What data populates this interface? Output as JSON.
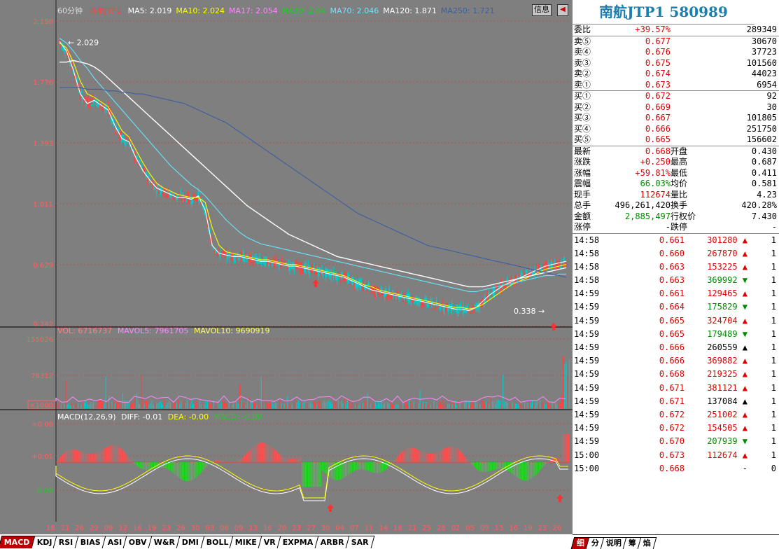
{
  "chart": {
    "period": "60分钟",
    "name": "南航JTP1",
    "ma": [
      {
        "label": "MA5: 2.019",
        "color": "#ffffff"
      },
      {
        "label": "MA10: 2.024",
        "color": "#ffff00"
      },
      {
        "label": "MA17: 2.054",
        "color": "#ff88ff"
      },
      {
        "label": "MA30: 2.04",
        "color": "#22cc22"
      },
      {
        "label": "MA70: 2.046",
        "color": "#66e6ff"
      },
      {
        "label": "MA120: 1.871",
        "color": "#ffffff"
      },
      {
        "label": "MA250: 1.721",
        "color": "#3a5fa0"
      }
    ],
    "price_ticks": [
      "2.158",
      "1.776",
      "1.393",
      "1.011",
      "0.629",
      "0.242"
    ],
    "high_label": "2.029",
    "low_label": "0.338",
    "vol_legend": {
      "vol": "VOL: 6716737",
      "mavol5": "MAVOL5: 7961705",
      "mavol10": "MAVOL10: 9690919"
    },
    "vol_ticks": [
      "155026",
      "78312",
      "×1000"
    ],
    "macd_legend": {
      "name": "MACD(12,26,9)",
      "diff": "DIFF: -0.01",
      "dea": "DEA: -0.00",
      "macd": "MACD: -0.00"
    },
    "macd_ticks": [
      "+0.08",
      "+0.01",
      "-0.05"
    ],
    "date_ticks": [
      "18",
      "21",
      "26",
      "29",
      "09",
      "12",
      "16",
      "19",
      "23",
      "26",
      "30",
      "03",
      "06",
      "09",
      "13",
      "16",
      "20",
      "23",
      "27",
      "30",
      "04",
      "07",
      "11",
      "14",
      "18",
      "21",
      "25",
      "28",
      "02",
      "05",
      "09",
      "13",
      "16",
      "19",
      "23",
      "26"
    ],
    "info_label": "信息",
    "tabs": [
      "MACD",
      "KDJ",
      "RSI",
      "BIAS",
      "ASI",
      "OBV",
      "W&R",
      "DMI",
      "BOLL",
      "MIKE",
      "VR",
      "EXPMA",
      "ARBR",
      "SAR"
    ],
    "colors": {
      "up": "#ff4040",
      "down": "#00cccc",
      "ma_white": "#ffffff",
      "ma_yellow": "#ffff00",
      "ma_pink": "#ff88ff",
      "ma_green": "#22cc22",
      "ma_cyan": "#66e6ff",
      "ma_blue": "#3a5fa0"
    }
  },
  "chart_data": {
    "type": "line",
    "ylim": [
      0.242,
      2.158
    ],
    "x": [
      0,
      10,
      20,
      30,
      40,
      50,
      60,
      70,
      80,
      90,
      100,
      110,
      120,
      130,
      140,
      150,
      160,
      170,
      180,
      190,
      200,
      210,
      220,
      230,
      240,
      250,
      260,
      270,
      280,
      290,
      300,
      310,
      320,
      330,
      340,
      350,
      360,
      370,
      380,
      390,
      400,
      410,
      420,
      430,
      440,
      450,
      460,
      470,
      480,
      490,
      500,
      510,
      520,
      530,
      540,
      550,
      560,
      570,
      580,
      590,
      600,
      610,
      620,
      630,
      640,
      650,
      660,
      670,
      680,
      690,
      700,
      710,
      720,
      730
    ],
    "series": [
      {
        "name": "MA5",
        "values": [
          2.03,
          1.97,
          1.85,
          1.7,
          1.64,
          1.66,
          1.63,
          1.6,
          1.5,
          1.42,
          1.4,
          1.3,
          1.22,
          1.16,
          1.11,
          1.09,
          1.07,
          1.05,
          1.05,
          1.04,
          1.06,
          0.97,
          0.75,
          0.7,
          0.69,
          0.68,
          0.68,
          0.67,
          0.66,
          0.65,
          0.65,
          0.64,
          0.63,
          0.62,
          0.62,
          0.61,
          0.6,
          0.59,
          0.58,
          0.57,
          0.56,
          0.55,
          0.53,
          0.51,
          0.49,
          0.47,
          0.46,
          0.45,
          0.44,
          0.43,
          0.42,
          0.41,
          0.4,
          0.39,
          0.38,
          0.37,
          0.36,
          0.35,
          0.35,
          0.34,
          0.36,
          0.4,
          0.44,
          0.47,
          0.5,
          0.52,
          0.54,
          0.56,
          0.58,
          0.6,
          0.62,
          0.63,
          0.64,
          0.65
        ]
      },
      {
        "name": "MA10",
        "values": [
          2.02,
          1.99,
          1.9,
          1.78,
          1.7,
          1.68,
          1.65,
          1.62,
          1.55,
          1.47,
          1.43,
          1.35,
          1.27,
          1.2,
          1.14,
          1.11,
          1.09,
          1.07,
          1.06,
          1.05,
          1.05,
          1.02,
          0.86,
          0.75,
          0.71,
          0.7,
          0.69,
          0.68,
          0.67,
          0.66,
          0.66,
          0.65,
          0.64,
          0.63,
          0.63,
          0.62,
          0.61,
          0.6,
          0.59,
          0.58,
          0.57,
          0.56,
          0.54,
          0.52,
          0.5,
          0.49,
          0.47,
          0.46,
          0.45,
          0.44,
          0.43,
          0.42,
          0.41,
          0.4,
          0.39,
          0.38,
          0.37,
          0.36,
          0.36,
          0.35,
          0.36,
          0.38,
          0.41,
          0.44,
          0.47,
          0.5,
          0.52,
          0.54,
          0.56,
          0.58,
          0.6,
          0.61,
          0.62,
          0.63
        ]
      },
      {
        "name": "MA70",
        "values": [
          2.05,
          2.02,
          1.97,
          1.91,
          1.86,
          1.8,
          1.75,
          1.7,
          1.65,
          1.6,
          1.55,
          1.5,
          1.45,
          1.4,
          1.35,
          1.3,
          1.25,
          1.21,
          1.17,
          1.13,
          1.1,
          1.06,
          1.01,
          0.96,
          0.91,
          0.87,
          0.83,
          0.8,
          0.78,
          0.76,
          0.75,
          0.74,
          0.73,
          0.72,
          0.71,
          0.7,
          0.69,
          0.68,
          0.67,
          0.66,
          0.65,
          0.64,
          0.63,
          0.62,
          0.61,
          0.6,
          0.59,
          0.58,
          0.57,
          0.56,
          0.55,
          0.54,
          0.53,
          0.52,
          0.51,
          0.5,
          0.49,
          0.48,
          0.47,
          0.46,
          0.46,
          0.47,
          0.48,
          0.49,
          0.5,
          0.51,
          0.52,
          0.53,
          0.54,
          0.55,
          0.56,
          0.56,
          0.57,
          0.57
        ]
      },
      {
        "name": "MA120",
        "values": [
          1.9,
          1.9,
          1.91,
          1.9,
          1.89,
          1.87,
          1.84,
          1.8,
          1.76,
          1.72,
          1.68,
          1.64,
          1.6,
          1.56,
          1.52,
          1.48,
          1.44,
          1.4,
          1.36,
          1.32,
          1.28,
          1.24,
          1.2,
          1.16,
          1.12,
          1.08,
          1.04,
          1.0,
          0.97,
          0.94,
          0.91,
          0.88,
          0.85,
          0.82,
          0.8,
          0.78,
          0.76,
          0.74,
          0.72,
          0.7,
          0.68,
          0.67,
          0.66,
          0.65,
          0.64,
          0.63,
          0.62,
          0.61,
          0.6,
          0.59,
          0.58,
          0.57,
          0.56,
          0.55,
          0.54,
          0.53,
          0.52,
          0.51,
          0.5,
          0.49,
          0.49,
          0.49,
          0.5,
          0.51,
          0.52,
          0.53,
          0.54,
          0.55,
          0.56,
          0.57,
          0.58,
          0.59,
          0.6,
          0.61
        ]
      },
      {
        "name": "MA250",
        "values": [
          1.74,
          1.74,
          1.74,
          1.74,
          1.73,
          1.73,
          1.73,
          1.72,
          1.72,
          1.71,
          1.71,
          1.7,
          1.7,
          1.69,
          1.68,
          1.67,
          1.66,
          1.65,
          1.64,
          1.62,
          1.6,
          1.58,
          1.56,
          1.54,
          1.52,
          1.49,
          1.46,
          1.43,
          1.4,
          1.37,
          1.34,
          1.31,
          1.28,
          1.25,
          1.22,
          1.19,
          1.16,
          1.13,
          1.1,
          1.07,
          1.04,
          1.01,
          0.98,
          0.95,
          0.93,
          0.91,
          0.89,
          0.87,
          0.85,
          0.83,
          0.81,
          0.79,
          0.77,
          0.75,
          0.74,
          0.73,
          0.72,
          0.71,
          0.7,
          0.69,
          0.68,
          0.67,
          0.66,
          0.65,
          0.64,
          0.63,
          0.62,
          0.61,
          0.6,
          0.59,
          0.58,
          0.57,
          0.56,
          0.55
        ]
      }
    ]
  },
  "quote": {
    "title": "南航JTP1 580989",
    "weibi": {
      "label": "委比",
      "value": "+39.57%",
      "right": "289349"
    },
    "sell": [
      {
        "label": "卖⑤",
        "price": "0.677",
        "vol": "30670"
      },
      {
        "label": "卖④",
        "price": "0.676",
        "vol": "37723"
      },
      {
        "label": "卖③",
        "price": "0.675",
        "vol": "101560"
      },
      {
        "label": "卖②",
        "price": "0.674",
        "vol": "44023"
      },
      {
        "label": "卖①",
        "price": "0.673",
        "vol": "6954"
      }
    ],
    "buy": [
      {
        "label": "买①",
        "price": "0.672",
        "vol": "92"
      },
      {
        "label": "买②",
        "price": "0.669",
        "vol": "30"
      },
      {
        "label": "买③",
        "price": "0.667",
        "vol": "101805"
      },
      {
        "label": "买④",
        "price": "0.666",
        "vol": "251750"
      },
      {
        "label": "买⑤",
        "price": "0.665",
        "vol": "156602"
      }
    ],
    "stats": [
      {
        "l1": "最新",
        "v1": "0.668",
        "c1": "red",
        "l2": "开盘",
        "v2": "0.430",
        "c2": "red"
      },
      {
        "l1": "涨跌",
        "v1": "+0.250",
        "c1": "red",
        "l2": "最高",
        "v2": "0.687",
        "c2": "red"
      },
      {
        "l1": "涨幅",
        "v1": "+59.81%",
        "c1": "red",
        "l2": "最低",
        "v2": "0.411",
        "c2": "green"
      },
      {
        "l1": "震幅",
        "v1": "66.03%",
        "c1": "green",
        "l2": "均价",
        "v2": "0.581",
        "c2": "red"
      },
      {
        "l1": "现手",
        "v1": "112674",
        "c1": "red",
        "l2": "量比",
        "v2": "4.23",
        "c2": "red"
      },
      {
        "l1": "总手",
        "v1": "496,261,420",
        "c1": "black",
        "l2": "换手",
        "v2": "420.28%",
        "c2": "green"
      },
      {
        "l1": "金额",
        "v1": "2,885,497",
        "c1": "green",
        "l2": "行权价",
        "v2": "7.430",
        "c2": "red"
      },
      {
        "l1": "涨停",
        "v1": "-",
        "c1": "black",
        "l2": "跌停",
        "v2": "-",
        "c2": "black"
      }
    ],
    "ticks": [
      {
        "time": "14:58",
        "price": "0.661",
        "vol": "301280",
        "dir": "up",
        "color": "red",
        "n": "1"
      },
      {
        "time": "14:58",
        "price": "0.660",
        "vol": "267870",
        "dir": "up",
        "color": "red",
        "n": "1"
      },
      {
        "time": "14:58",
        "price": "0.663",
        "vol": "153225",
        "dir": "up",
        "color": "red",
        "n": "1"
      },
      {
        "time": "14:58",
        "price": "0.663",
        "vol": "369992",
        "dir": "down",
        "color": "green",
        "n": "1"
      },
      {
        "time": "14:59",
        "price": "0.661",
        "vol": "129465",
        "dir": "up",
        "color": "red",
        "n": "1"
      },
      {
        "time": "14:59",
        "price": "0.664",
        "vol": "175829",
        "dir": "down",
        "color": "green",
        "n": "1"
      },
      {
        "time": "14:59",
        "price": "0.665",
        "vol": "324704",
        "dir": "up",
        "color": "red",
        "n": "1"
      },
      {
        "time": "14:59",
        "price": "0.665",
        "vol": "179489",
        "dir": "down",
        "color": "green",
        "n": "1"
      },
      {
        "time": "14:59",
        "price": "0.666",
        "vol": "260559",
        "dir": "up",
        "color": "black",
        "n": "1"
      },
      {
        "time": "14:59",
        "price": "0.666",
        "vol": "369882",
        "dir": "up",
        "color": "red",
        "n": "1"
      },
      {
        "time": "14:59",
        "price": "0.668",
        "vol": "219325",
        "dir": "up",
        "color": "red",
        "n": "1"
      },
      {
        "time": "14:59",
        "price": "0.671",
        "vol": "381121",
        "dir": "up",
        "color": "red",
        "n": "1"
      },
      {
        "time": "14:59",
        "price": "0.671",
        "vol": "137084",
        "dir": "up",
        "color": "black",
        "n": "1"
      },
      {
        "time": "14:59",
        "price": "0.672",
        "vol": "251002",
        "dir": "up",
        "color": "red",
        "n": "1"
      },
      {
        "time": "14:59",
        "price": "0.672",
        "vol": "154505",
        "dir": "up",
        "color": "red",
        "n": "1"
      },
      {
        "time": "14:59",
        "price": "0.670",
        "vol": "207939",
        "dir": "down",
        "color": "green",
        "n": "1"
      },
      {
        "time": "15:00",
        "price": "0.673",
        "vol": "112674",
        "dir": "up",
        "color": "red",
        "n": "1"
      },
      {
        "time": "15:00",
        "price": "0.668",
        "vol": "-",
        "dir": "none",
        "color": "red",
        "n": "0"
      }
    ],
    "tabs": [
      "细",
      "分",
      "说明",
      "筹",
      "焰"
    ]
  }
}
